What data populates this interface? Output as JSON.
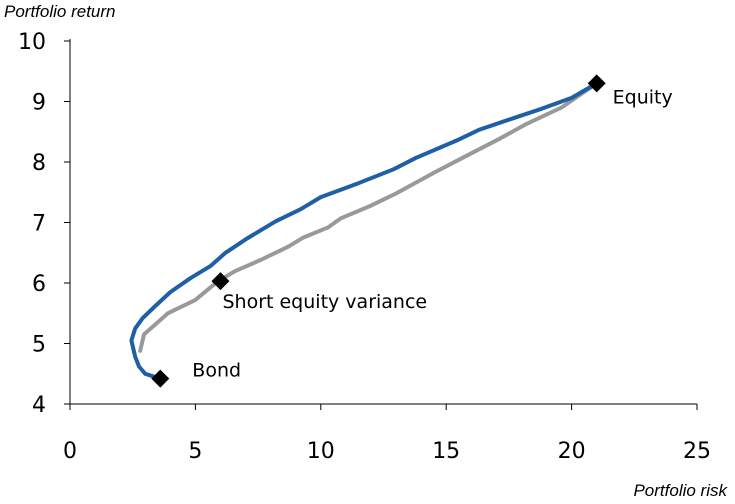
{
  "chart_data": {
    "type": "line",
    "xlabel": "Portfolio risk",
    "ylabel": "Portfolio return",
    "xlim": [
      0,
      25
    ],
    "ylim": [
      4,
      10
    ],
    "xticks": [
      "0",
      "5",
      "10",
      "15",
      "20",
      "25"
    ],
    "yticks": [
      "4",
      "5",
      "6",
      "7",
      "8",
      "9",
      "10"
    ],
    "grid": false,
    "legend": "none",
    "series": [
      {
        "color": "#1f5fa6",
        "points": [
          [
            3.6,
            4.42
          ],
          [
            3.0,
            4.5
          ],
          [
            2.75,
            4.62
          ],
          [
            2.6,
            4.78
          ],
          [
            2.45,
            5.05
          ],
          [
            2.6,
            5.25
          ],
          [
            2.9,
            5.42
          ],
          [
            3.4,
            5.62
          ],
          [
            4.0,
            5.85
          ],
          [
            4.8,
            6.08
          ],
          [
            5.6,
            6.28
          ],
          [
            6.2,
            6.5
          ],
          [
            7.0,
            6.72
          ],
          [
            8.2,
            7.02
          ],
          [
            9.2,
            7.22
          ],
          [
            10.0,
            7.42
          ],
          [
            11.5,
            7.65
          ],
          [
            12.9,
            7.88
          ],
          [
            13.8,
            8.07
          ],
          [
            15.5,
            8.37
          ],
          [
            16.3,
            8.53
          ],
          [
            17.5,
            8.7
          ],
          [
            18.8,
            8.88
          ],
          [
            20.0,
            9.06
          ],
          [
            21.0,
            9.3
          ]
        ]
      },
      {
        "color": "#999999",
        "points": [
          [
            2.8,
            4.88
          ],
          [
            2.95,
            5.15
          ],
          [
            3.5,
            5.35
          ],
          [
            3.9,
            5.5
          ],
          [
            5.0,
            5.72
          ],
          [
            5.9,
            6.03
          ],
          [
            6.6,
            6.2
          ],
          [
            7.6,
            6.38
          ],
          [
            8.7,
            6.6
          ],
          [
            9.3,
            6.75
          ],
          [
            10.3,
            6.92
          ],
          [
            10.8,
            7.07
          ],
          [
            12.0,
            7.28
          ],
          [
            13.0,
            7.48
          ],
          [
            14.5,
            7.82
          ],
          [
            15.7,
            8.08
          ],
          [
            17.2,
            8.4
          ],
          [
            18.2,
            8.63
          ],
          [
            19.6,
            8.9
          ],
          [
            21.0,
            9.3
          ]
        ]
      }
    ],
    "points": [
      {
        "label": "Equity",
        "x": 21.0,
        "y": 9.3
      },
      {
        "label": "Short equity variance",
        "x": 6.0,
        "y": 6.03
      },
      {
        "label": "Bond",
        "x": 3.6,
        "y": 4.42
      }
    ]
  }
}
